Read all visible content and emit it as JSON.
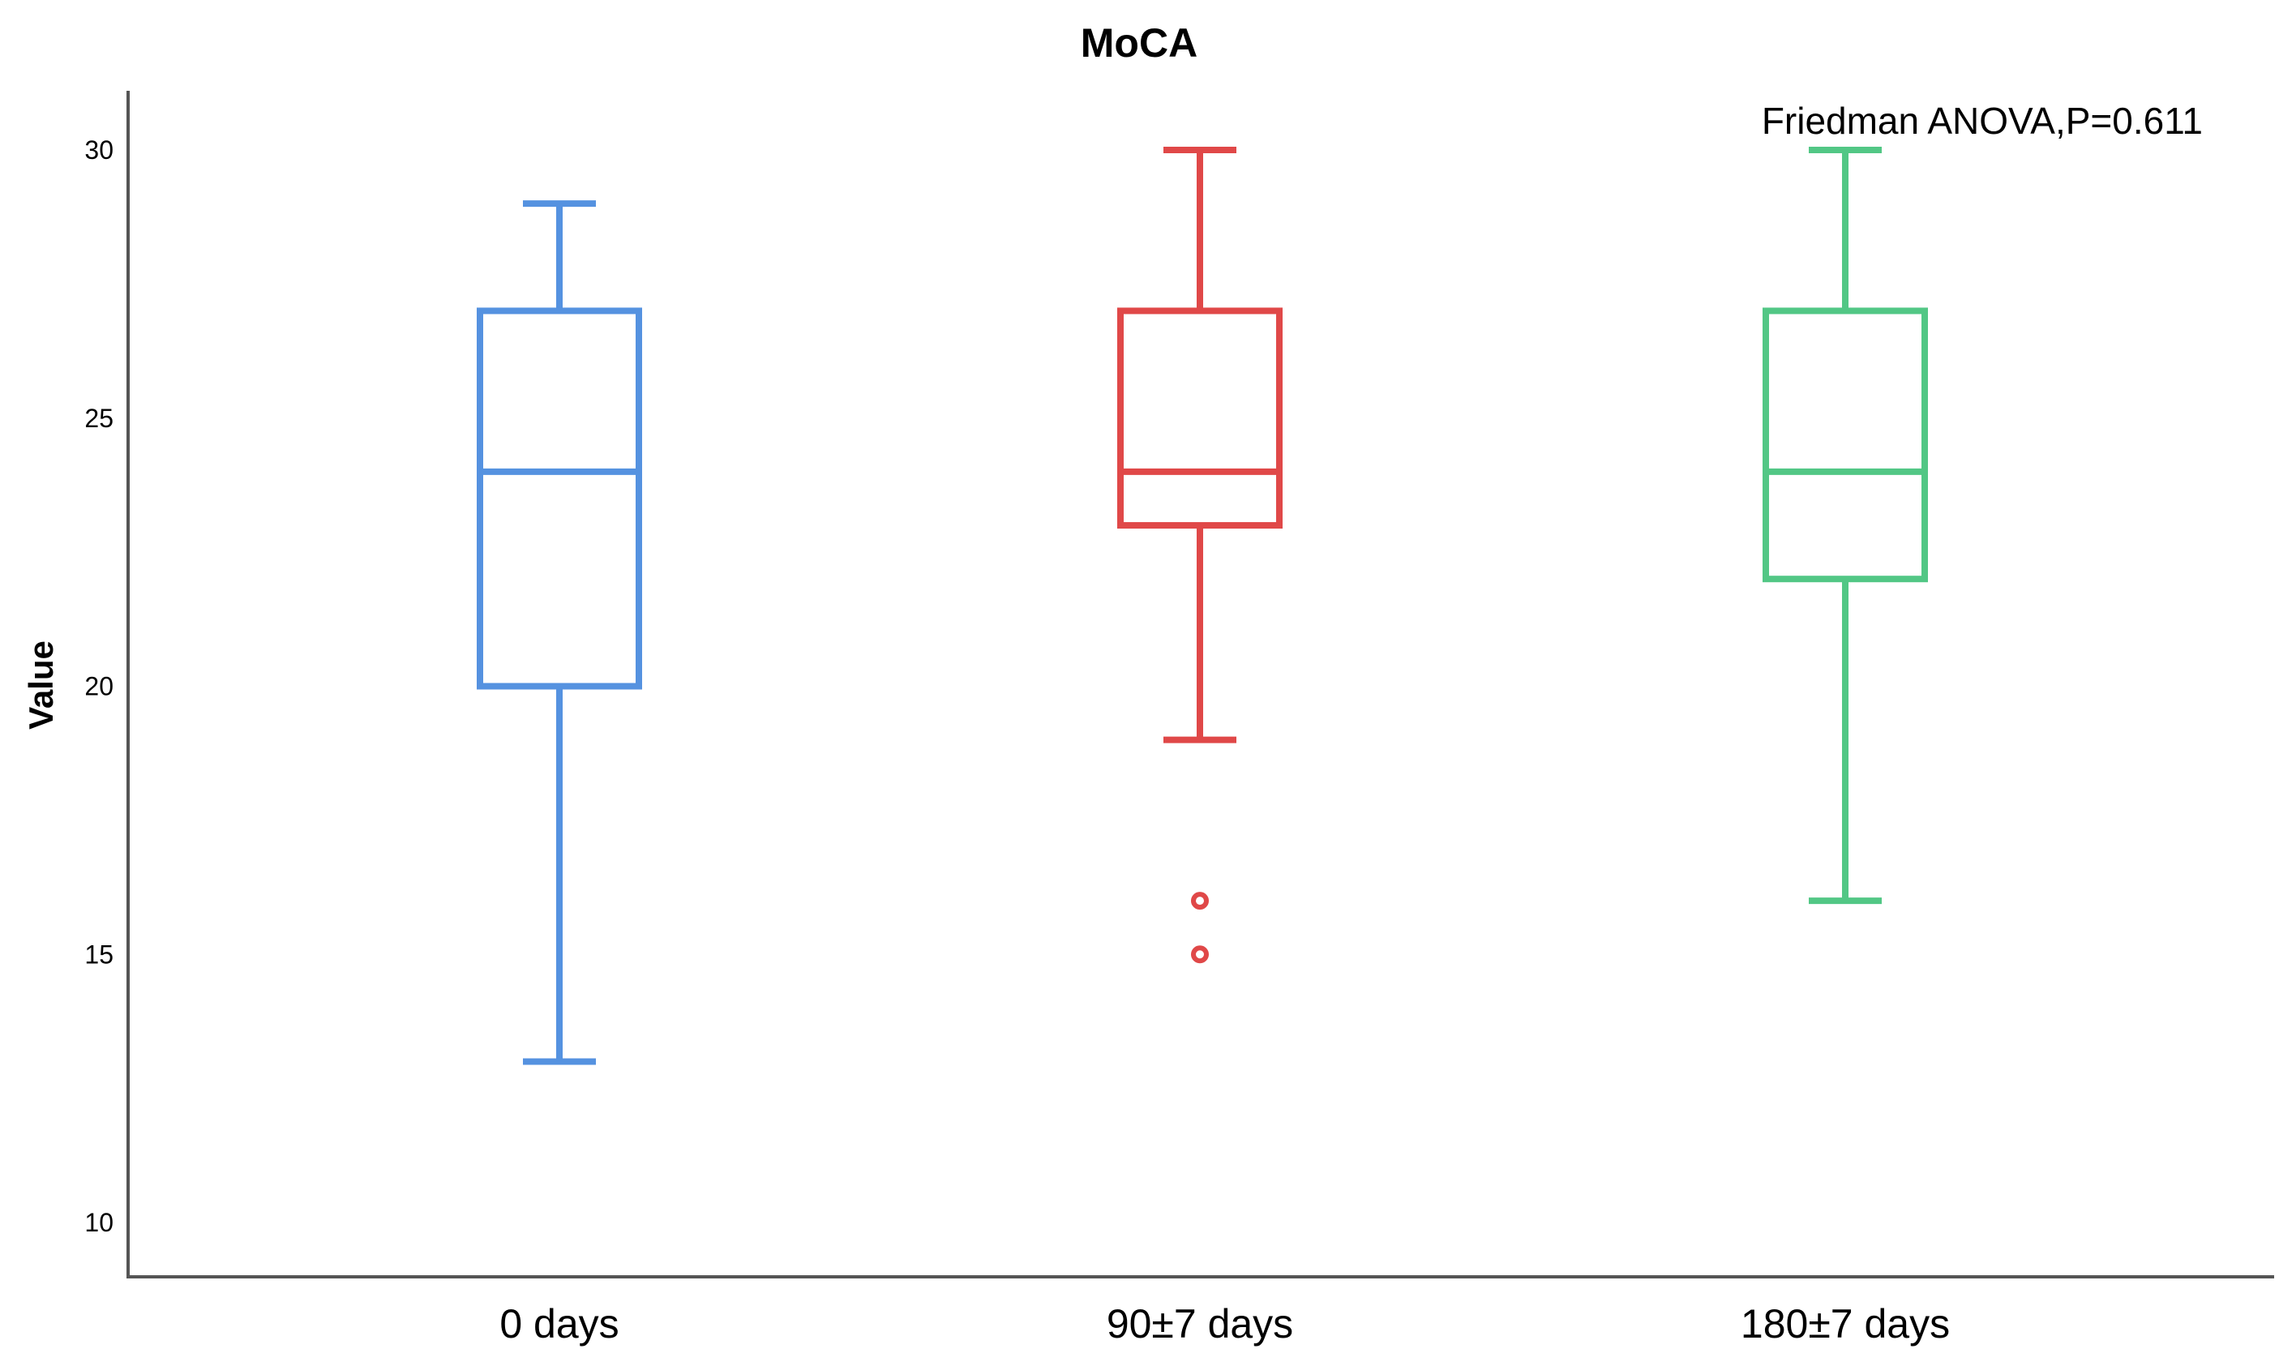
{
  "chart_data": {
    "type": "boxplot",
    "title": "MoCA",
    "xlabel": "",
    "ylabel": "Value",
    "ylim": [
      8,
      31
    ],
    "yticks": [
      10,
      15,
      20,
      25,
      30
    ],
    "categories": [
      "0 days",
      "90±7 days",
      "180±7 days"
    ],
    "series": [
      {
        "name": "0 days",
        "color": "#5592e0",
        "whisker_low": 13,
        "q1": 20,
        "median": 24,
        "q3": 27,
        "whisker_high": 29,
        "outliers": []
      },
      {
        "name": "90±7 days",
        "color": "#e04848",
        "whisker_low": 19,
        "q1": 23,
        "median": 24,
        "q3": 27,
        "whisker_high": 30,
        "outliers": [
          16,
          15
        ]
      },
      {
        "name": "180±7 days",
        "color": "#52c785",
        "whisker_low": 16,
        "q1": 22,
        "median": 24,
        "q3": 27,
        "whisker_high": 30,
        "outliers": []
      }
    ],
    "annotations": [
      "Friedman ANOVA,P=0.611"
    ],
    "grid": false
  }
}
